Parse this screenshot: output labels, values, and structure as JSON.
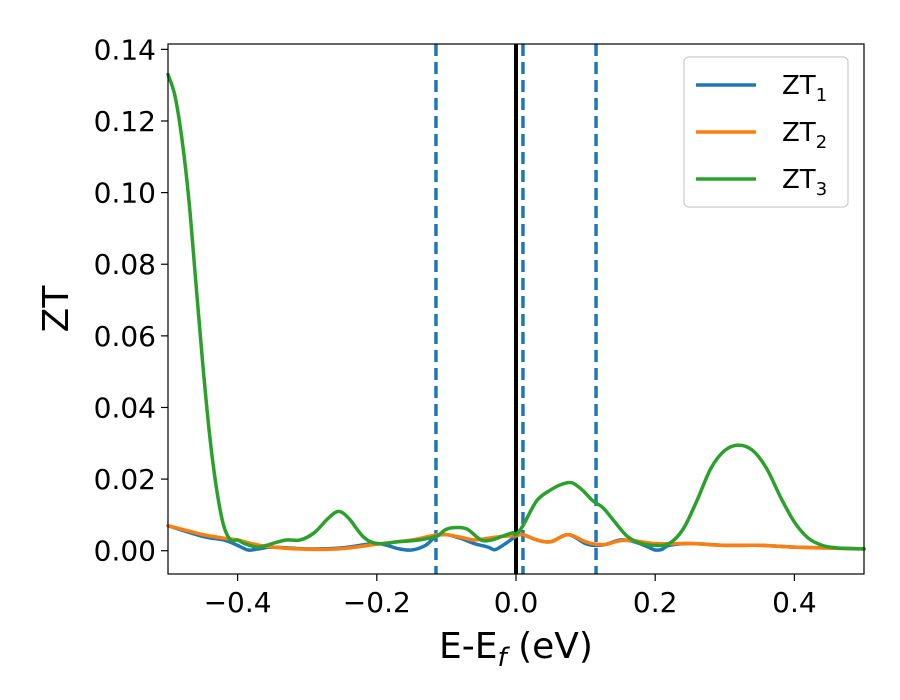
{
  "chart_data": {
    "type": "line",
    "xlabel": {
      "main": "E-E",
      "sub": "f",
      "suffix": " (eV)"
    },
    "ylabel": "ZT",
    "xlim": [
      -0.5,
      0.5
    ],
    "ylim": [
      -0.0065,
      0.1415
    ],
    "xticks": [
      -0.4,
      -0.2,
      0.0,
      0.2,
      0.4
    ],
    "xtick_labels": [
      "−0.4",
      "−0.2",
      "0.0",
      "0.2",
      "0.4"
    ],
    "yticks": [
      0.0,
      0.02,
      0.04,
      0.06,
      0.08,
      0.1,
      0.12,
      0.14
    ],
    "ytick_labels": [
      "0.00",
      "0.02",
      "0.04",
      "0.06",
      "0.08",
      "0.10",
      "0.12",
      "0.14"
    ],
    "grid": false,
    "legend_position": "top-right",
    "series": [
      {
        "name": "ZT",
        "name_sub": "1",
        "color": "#1f77b4",
        "x": [
          -0.5,
          -0.45,
          -0.42,
          -0.4,
          -0.385,
          -0.37,
          -0.35,
          -0.3,
          -0.25,
          -0.2,
          -0.17,
          -0.15,
          -0.13,
          -0.115,
          -0.1,
          -0.08,
          -0.06,
          -0.04,
          -0.03,
          -0.015,
          0.0,
          0.01,
          0.03,
          0.05,
          0.075,
          0.1,
          0.115,
          0.13,
          0.15,
          0.17,
          0.19,
          0.2,
          0.21,
          0.22,
          0.25,
          0.3,
          0.35,
          0.4,
          0.45,
          0.5
        ],
        "y": [
          0.007,
          0.004,
          0.003,
          0.0015,
          0.0002,
          0.0005,
          0.001,
          0.0005,
          0.0008,
          0.002,
          0.0006,
          0.0002,
          0.0015,
          0.004,
          0.0045,
          0.0035,
          0.002,
          0.001,
          0.0003,
          0.002,
          0.004,
          0.0045,
          0.003,
          0.0025,
          0.0045,
          0.002,
          0.0015,
          0.0018,
          0.003,
          0.0025,
          0.001,
          0.0002,
          0.0004,
          0.0015,
          0.002,
          0.0015,
          0.0015,
          0.001,
          0.0008,
          0.0005
        ]
      },
      {
        "name": "ZT",
        "name_sub": "2",
        "color": "#ff7f0e",
        "x": [
          -0.5,
          -0.47,
          -0.45,
          -0.42,
          -0.4,
          -0.38,
          -0.35,
          -0.3,
          -0.25,
          -0.2,
          -0.15,
          -0.13,
          -0.115,
          -0.1,
          -0.08,
          -0.06,
          -0.04,
          -0.02,
          0.0,
          0.01,
          0.03,
          0.05,
          0.075,
          0.1,
          0.115,
          0.13,
          0.15,
          0.17,
          0.2,
          0.25,
          0.3,
          0.35,
          0.4,
          0.45,
          0.5
        ],
        "y": [
          0.007,
          0.0055,
          0.0045,
          0.0035,
          0.003,
          0.002,
          0.001,
          0.0004,
          0.0006,
          0.0018,
          0.003,
          0.0038,
          0.0044,
          0.0045,
          0.0038,
          0.003,
          0.0035,
          0.004,
          0.0042,
          0.0045,
          0.003,
          0.0025,
          0.0045,
          0.0025,
          0.0018,
          0.0018,
          0.0028,
          0.0028,
          0.002,
          0.002,
          0.0015,
          0.0015,
          0.001,
          0.0007,
          0.0005
        ]
      },
      {
        "name": "ZT",
        "name_sub": "3",
        "color": "#2ca02c",
        "x": [
          -0.5,
          -0.49,
          -0.48,
          -0.47,
          -0.46,
          -0.45,
          -0.44,
          -0.43,
          -0.42,
          -0.41,
          -0.4,
          -0.39,
          -0.37,
          -0.35,
          -0.33,
          -0.31,
          -0.29,
          -0.27,
          -0.255,
          -0.24,
          -0.22,
          -0.2,
          -0.17,
          -0.14,
          -0.115,
          -0.1,
          -0.085,
          -0.07,
          -0.05,
          -0.035,
          -0.02,
          -0.005,
          0.0,
          0.01,
          0.03,
          0.05,
          0.065,
          0.08,
          0.095,
          0.11,
          0.125,
          0.14,
          0.16,
          0.18,
          0.2,
          0.22,
          0.24,
          0.26,
          0.28,
          0.3,
          0.32,
          0.34,
          0.36,
          0.38,
          0.4,
          0.42,
          0.44,
          0.46,
          0.48,
          0.5
        ],
        "y": [
          0.133,
          0.127,
          0.115,
          0.098,
          0.075,
          0.052,
          0.032,
          0.017,
          0.007,
          0.003,
          0.003,
          0.002,
          0.001,
          0.002,
          0.003,
          0.003,
          0.005,
          0.009,
          0.011,
          0.009,
          0.004,
          0.002,
          0.0025,
          0.003,
          0.004,
          0.006,
          0.0065,
          0.006,
          0.003,
          0.003,
          0.004,
          0.005,
          0.0045,
          0.007,
          0.014,
          0.017,
          0.0185,
          0.019,
          0.017,
          0.014,
          0.012,
          0.0085,
          0.004,
          0.002,
          0.0015,
          0.002,
          0.006,
          0.014,
          0.023,
          0.028,
          0.0295,
          0.028,
          0.023,
          0.015,
          0.008,
          0.0035,
          0.0015,
          0.0008,
          0.0006,
          0.0005
        ]
      }
    ],
    "vertical_lines": [
      {
        "x": 0.0,
        "style": "solid",
        "color": "#000000"
      },
      {
        "x": -0.115,
        "style": "dashed",
        "color": "#1f77b4"
      },
      {
        "x": 0.01,
        "style": "dashed",
        "color": "#1f77b4"
      },
      {
        "x": 0.115,
        "style": "dashed",
        "color": "#1f77b4"
      }
    ]
  }
}
